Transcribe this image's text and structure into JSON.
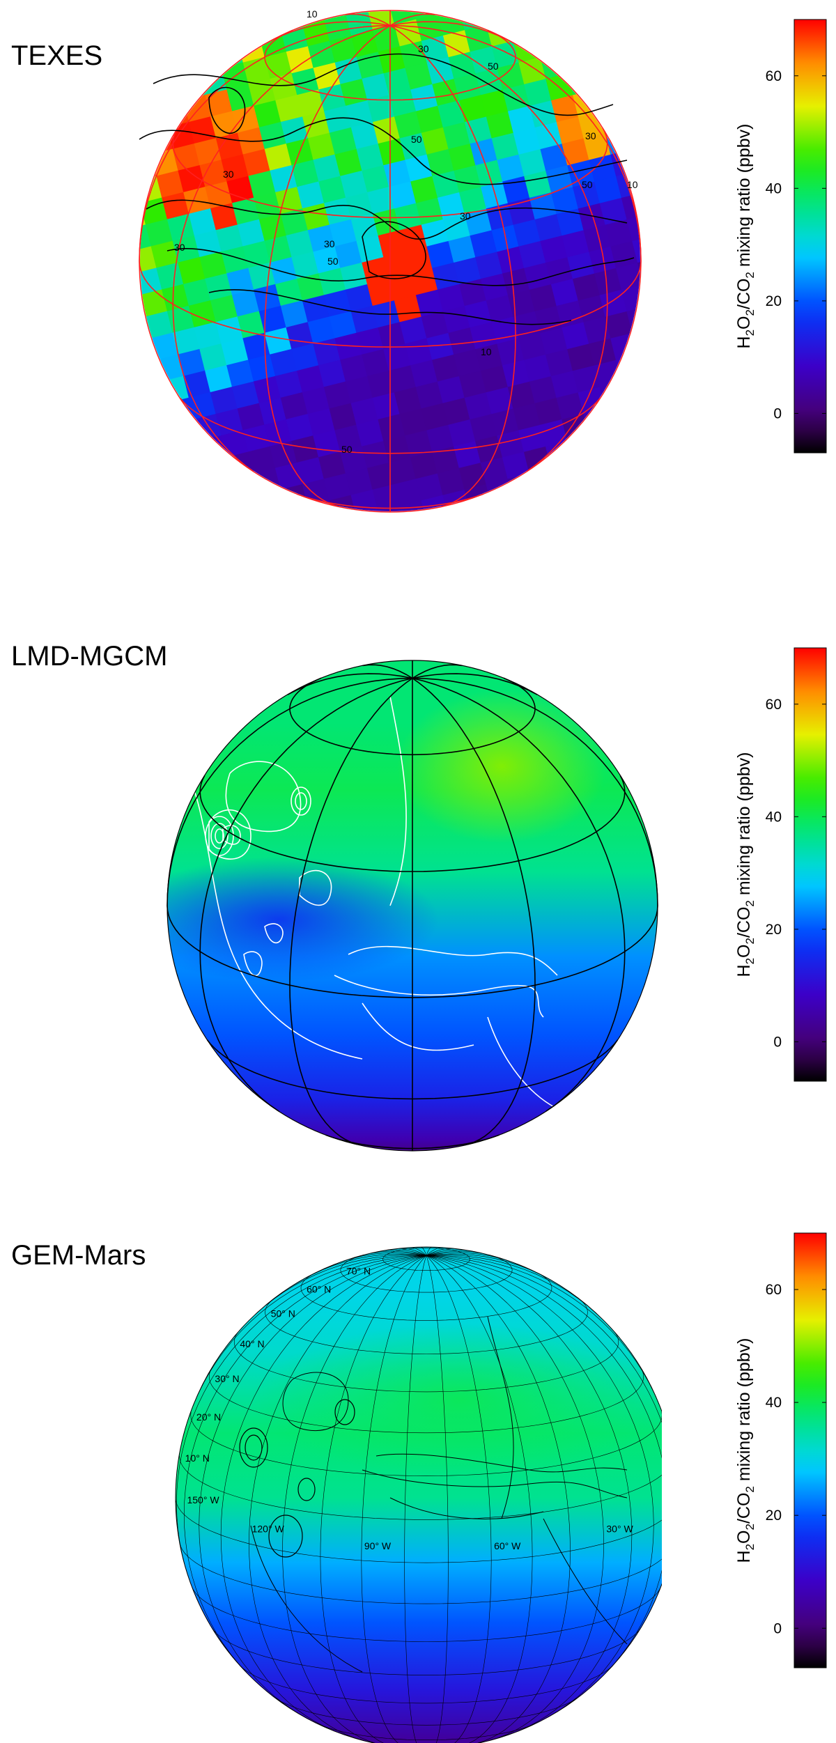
{
  "chart_data": [
    {
      "type": "heatmap",
      "title": "TEXES",
      "colorbar": {
        "label": "H2O2/CO2 mixing ratio (ppbv)",
        "label_parts": [
          "H",
          "2",
          "O",
          "2",
          "/CO",
          "2",
          " mixing ratio (ppbv)"
        ],
        "ticks": [
          0,
          20,
          40,
          60
        ],
        "range": [
          -7,
          70
        ],
        "colormap": "rainbow"
      },
      "contour_labels": [
        "10",
        "30",
        "50",
        "30",
        "50",
        "50",
        "30",
        "30",
        "10",
        "50",
        "10",
        "30",
        "30",
        "50"
      ],
      "bands": [
        {
          "lat": 80,
          "value": 45
        },
        {
          "lat": 60,
          "value": 42
        },
        {
          "lat": 40,
          "value": 40
        },
        {
          "lat": 20,
          "value": 34
        },
        {
          "lat": 0,
          "value": 24
        },
        {
          "lat": -20,
          "value": 8
        },
        {
          "lat": -40,
          "value": 6
        },
        {
          "lat": -60,
          "value": 5
        }
      ],
      "grid_color": "#ff2020",
      "contour_color": "#000000"
    },
    {
      "type": "heatmap",
      "title": "LMD-MGCM",
      "colorbar": {
        "label": "H2O2/CO2 mixing ratio (ppbv)",
        "label_parts": [
          "H",
          "2",
          "O",
          "2",
          "/CO",
          "2",
          " mixing ratio (ppbv)"
        ],
        "ticks": [
          0,
          20,
          40,
          60
        ],
        "range": [
          -7,
          70
        ],
        "colormap": "rainbow"
      },
      "bands": [
        {
          "lat": 70,
          "value": 38
        },
        {
          "lat": 50,
          "value": 40
        },
        {
          "lat": 30,
          "value": 36
        },
        {
          "lat": 10,
          "value": 24
        },
        {
          "lat": -10,
          "value": 20
        },
        {
          "lat": -30,
          "value": 14
        },
        {
          "lat": -50,
          "value": 6
        },
        {
          "lat": -70,
          "value": 2
        }
      ],
      "grid_color": "#000000",
      "contour_color": "#ffffff"
    },
    {
      "type": "heatmap",
      "title": "GEM-Mars",
      "colorbar": {
        "label": "H2O2/CO2 mixing ratio (ppbv)",
        "label_parts": [
          "H",
          "2",
          "O",
          "2",
          "/CO",
          "2",
          " mixing ratio (ppbv)"
        ],
        "ticks": [
          0,
          20,
          40,
          60
        ],
        "range": [
          -7,
          70
        ],
        "colormap": "rainbow"
      },
      "lat_labels": [
        "70° N",
        "60° N",
        "50° N",
        "40° N",
        "30° N",
        "20° N",
        "10° N"
      ],
      "lon_labels": [
        "150° W",
        "120° W",
        "90° W",
        "60° W",
        "30° W"
      ],
      "bands": [
        {
          "lat": 70,
          "value": 30
        },
        {
          "lat": 50,
          "value": 32
        },
        {
          "lat": 30,
          "value": 38
        },
        {
          "lat": 15,
          "value": 36
        },
        {
          "lat": 0,
          "value": 26
        },
        {
          "lat": -15,
          "value": 20
        },
        {
          "lat": -35,
          "value": 12
        },
        {
          "lat": -60,
          "value": 4
        }
      ],
      "grid_color": "#000000",
      "contour_color": "#000000"
    }
  ]
}
